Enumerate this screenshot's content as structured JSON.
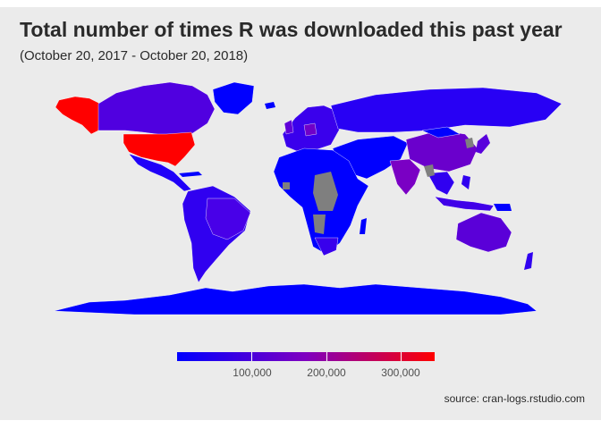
{
  "title": "Total number of times R was downloaded this past year",
  "subtitle": "(October 20, 2017 - October 20, 2018)",
  "caption": "source: cran-logs.rstudio.com",
  "legend": {
    "labels": [
      "100,000",
      "200,000",
      "300,000"
    ],
    "max_value": 345000,
    "colors": {
      "low": "#0000ff",
      "mid": "#7f00c0",
      "high": "#ff0000"
    }
  },
  "colors": {
    "panel_background": "#ebebeb",
    "no_data": "#7f7f7f",
    "country_border": "#ffffff"
  }
}
